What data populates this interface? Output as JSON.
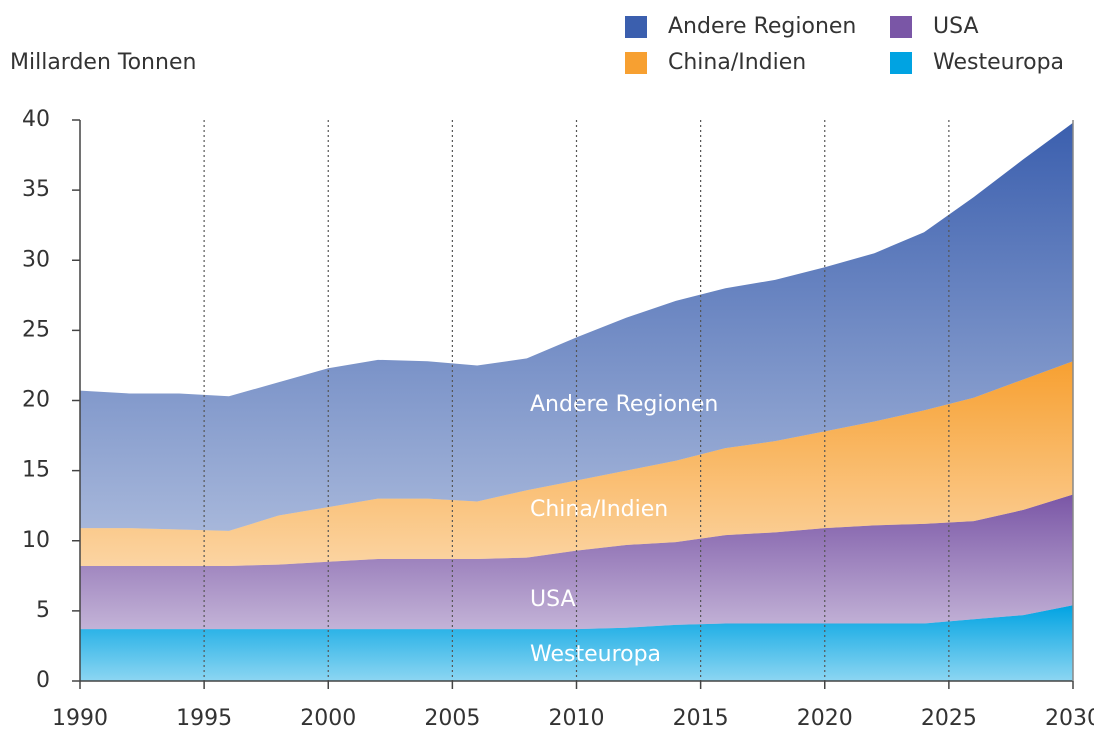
{
  "chart_data": {
    "type": "stacked-area",
    "y_label": "Millarden Tonnen",
    "x": [
      1990,
      1992,
      1994,
      1996,
      1998,
      2000,
      2002,
      2004,
      2006,
      2008,
      2010,
      2012,
      2014,
      2016,
      2018,
      2020,
      2022,
      2024,
      2026,
      2028,
      2030
    ],
    "series": [
      {
        "name": "Westeuropa",
        "color": "#00a3e2",
        "values": [
          3.7,
          3.7,
          3.7,
          3.7,
          3.7,
          3.7,
          3.7,
          3.7,
          3.7,
          3.7,
          3.7,
          3.8,
          4.0,
          4.1,
          4.1,
          4.1,
          4.1,
          4.1,
          4.4,
          4.7,
          5.4
        ]
      },
      {
        "name": "USA",
        "color": "#7a56a6",
        "values": [
          4.5,
          4.5,
          4.5,
          4.5,
          4.6,
          4.8,
          5.0,
          5.0,
          5.0,
          5.1,
          5.6,
          5.9,
          5.9,
          6.3,
          6.5,
          6.8,
          7.0,
          7.1,
          7.0,
          7.5,
          7.9
        ]
      },
      {
        "name": "China/Indien",
        "color": "#f7a031",
        "values": [
          2.7,
          2.7,
          2.6,
          2.5,
          3.5,
          3.9,
          4.3,
          4.3,
          4.1,
          4.8,
          5.0,
          5.3,
          5.8,
          6.2,
          6.5,
          6.9,
          7.4,
          8.1,
          8.8,
          9.3,
          9.5
        ]
      },
      {
        "name": "Andere Regionen",
        "color": "#3b5fae",
        "values": [
          9.8,
          9.6,
          9.7,
          9.6,
          9.5,
          9.9,
          9.9,
          9.8,
          9.7,
          9.4,
          10.2,
          10.9,
          11.4,
          11.4,
          11.5,
          11.7,
          12.0,
          12.7,
          14.3,
          15.7,
          17.0
        ]
      }
    ],
    "xlim": [
      1990,
      2030
    ],
    "xticks": [
      1990,
      1995,
      2000,
      2005,
      2010,
      2015,
      2020,
      2025,
      2030
    ],
    "ylim": [
      0,
      40
    ],
    "yticks": [
      0,
      5,
      10,
      15,
      20,
      25,
      30,
      35,
      40
    ],
    "grid": "x"
  }
}
